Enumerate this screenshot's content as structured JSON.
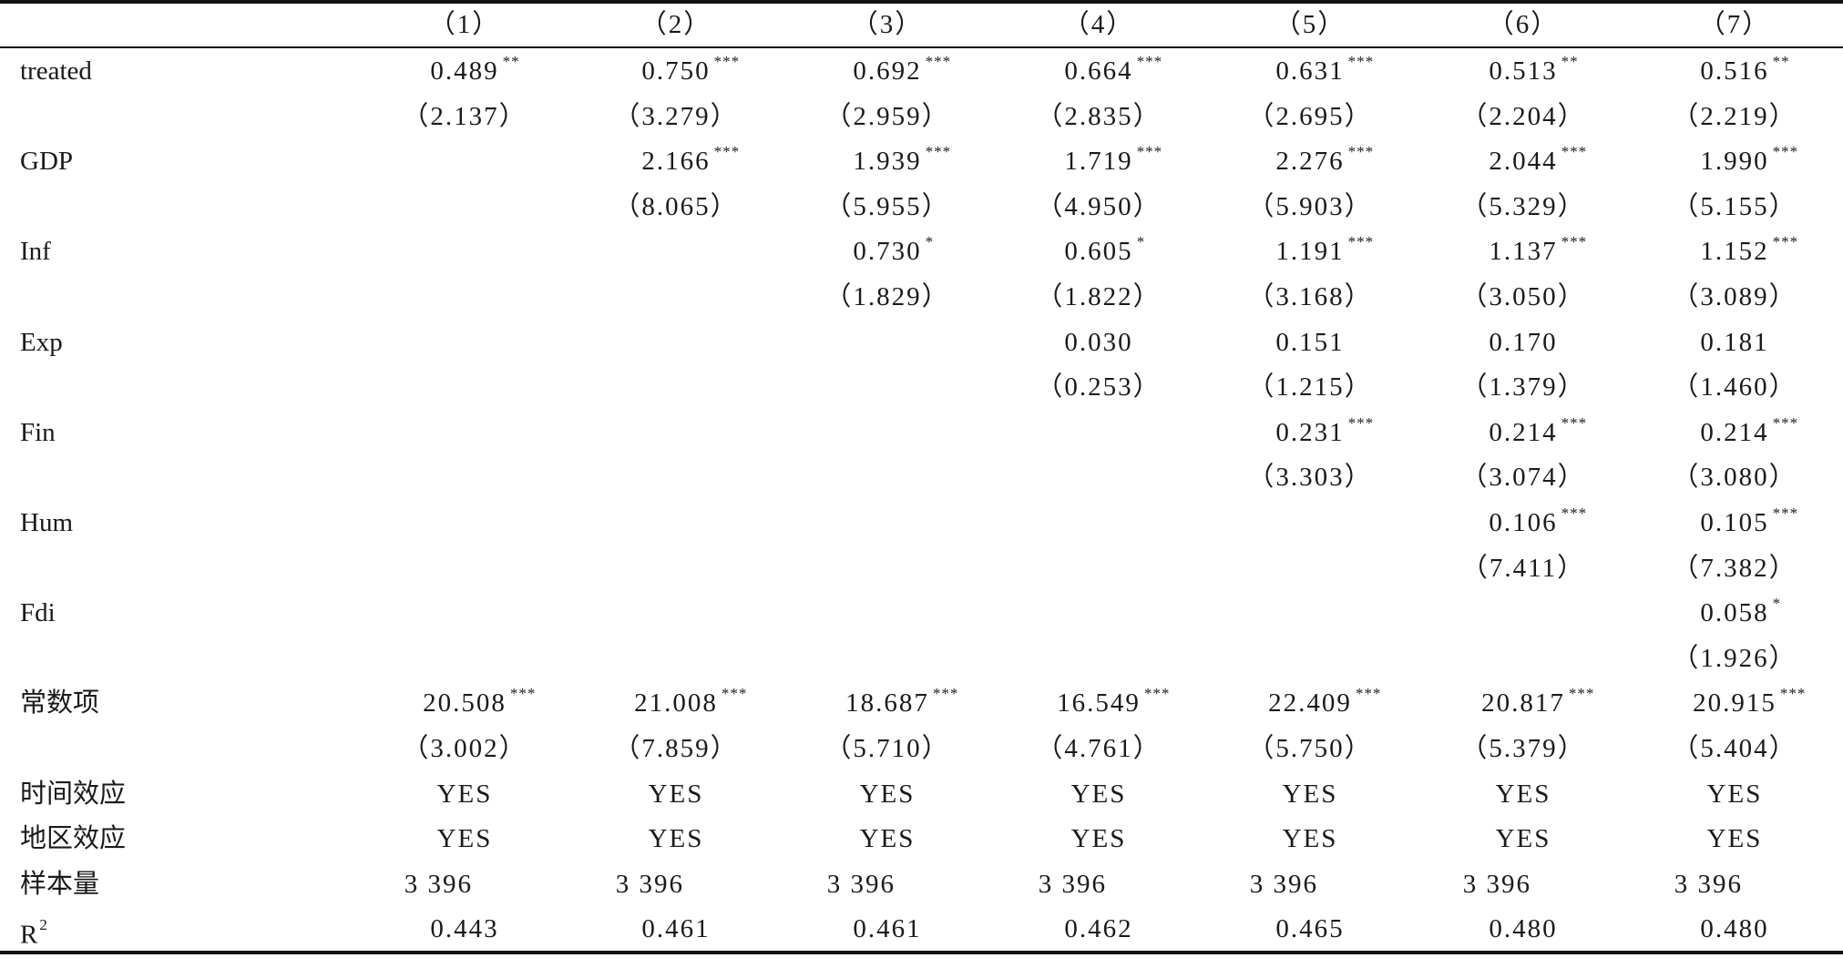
{
  "header": {
    "columns": [
      "（1）",
      "（2）",
      "（3）",
      "（4）",
      "（5）",
      "（6）",
      "（7）"
    ]
  },
  "rows": [
    {
      "label": "treated",
      "values": [
        {
          "v": "0.489",
          "s": "**"
        },
        {
          "v": "0.750",
          "s": "***"
        },
        {
          "v": "0.692",
          "s": "***"
        },
        {
          "v": "0.664",
          "s": "***"
        },
        {
          "v": "0.631",
          "s": "***"
        },
        {
          "v": "0.513",
          "s": "**"
        },
        {
          "v": "0.516",
          "s": "**"
        }
      ]
    },
    {
      "label": "",
      "values": [
        {
          "v": "（2.137）",
          "s": ""
        },
        {
          "v": "（3.279）",
          "s": ""
        },
        {
          "v": "（2.959）",
          "s": ""
        },
        {
          "v": "（2.835）",
          "s": ""
        },
        {
          "v": "（2.695）",
          "s": ""
        },
        {
          "v": "（2.204）",
          "s": ""
        },
        {
          "v": "（2.219）",
          "s": ""
        }
      ]
    },
    {
      "label": "GDP",
      "values": [
        {
          "v": "",
          "s": ""
        },
        {
          "v": "2.166",
          "s": "***"
        },
        {
          "v": "1.939",
          "s": "***"
        },
        {
          "v": "1.719",
          "s": "***"
        },
        {
          "v": "2.276",
          "s": "***"
        },
        {
          "v": "2.044",
          "s": "***"
        },
        {
          "v": "1.990",
          "s": "***"
        }
      ]
    },
    {
      "label": "",
      "values": [
        {
          "v": "",
          "s": ""
        },
        {
          "v": "（8.065）",
          "s": ""
        },
        {
          "v": "（5.955）",
          "s": ""
        },
        {
          "v": "（4.950）",
          "s": ""
        },
        {
          "v": "（5.903）",
          "s": ""
        },
        {
          "v": "（5.329）",
          "s": ""
        },
        {
          "v": "（5.155）",
          "s": ""
        }
      ]
    },
    {
      "label": "Inf",
      "values": [
        {
          "v": "",
          "s": ""
        },
        {
          "v": "",
          "s": ""
        },
        {
          "v": "0.730",
          "s": "*"
        },
        {
          "v": "0.605",
          "s": "*"
        },
        {
          "v": "1.191",
          "s": "***"
        },
        {
          "v": "1.137",
          "s": "***"
        },
        {
          "v": "1.152",
          "s": "***"
        }
      ]
    },
    {
      "label": "",
      "values": [
        {
          "v": "",
          "s": ""
        },
        {
          "v": "",
          "s": ""
        },
        {
          "v": "（1.829）",
          "s": ""
        },
        {
          "v": "（1.822）",
          "s": ""
        },
        {
          "v": "（3.168）",
          "s": ""
        },
        {
          "v": "（3.050）",
          "s": ""
        },
        {
          "v": "（3.089）",
          "s": ""
        }
      ]
    },
    {
      "label": "Exp",
      "values": [
        {
          "v": "",
          "s": ""
        },
        {
          "v": "",
          "s": ""
        },
        {
          "v": "",
          "s": ""
        },
        {
          "v": "0.030",
          "s": ""
        },
        {
          "v": "0.151",
          "s": ""
        },
        {
          "v": "0.170",
          "s": ""
        },
        {
          "v": "0.181",
          "s": ""
        }
      ]
    },
    {
      "label": "",
      "values": [
        {
          "v": "",
          "s": ""
        },
        {
          "v": "",
          "s": ""
        },
        {
          "v": "",
          "s": ""
        },
        {
          "v": "（0.253）",
          "s": ""
        },
        {
          "v": "（1.215）",
          "s": ""
        },
        {
          "v": "（1.379）",
          "s": ""
        },
        {
          "v": "（1.460）",
          "s": ""
        }
      ]
    },
    {
      "label": "Fin",
      "values": [
        {
          "v": "",
          "s": ""
        },
        {
          "v": "",
          "s": ""
        },
        {
          "v": "",
          "s": ""
        },
        {
          "v": "",
          "s": ""
        },
        {
          "v": "0.231",
          "s": "***"
        },
        {
          "v": "0.214",
          "s": "***"
        },
        {
          "v": "0.214",
          "s": "***"
        }
      ]
    },
    {
      "label": "",
      "values": [
        {
          "v": "",
          "s": ""
        },
        {
          "v": "",
          "s": ""
        },
        {
          "v": "",
          "s": ""
        },
        {
          "v": "",
          "s": ""
        },
        {
          "v": "（3.303）",
          "s": ""
        },
        {
          "v": "（3.074）",
          "s": ""
        },
        {
          "v": "（3.080）",
          "s": ""
        }
      ]
    },
    {
      "label": "Hum",
      "values": [
        {
          "v": "",
          "s": ""
        },
        {
          "v": "",
          "s": ""
        },
        {
          "v": "",
          "s": ""
        },
        {
          "v": "",
          "s": ""
        },
        {
          "v": "",
          "s": ""
        },
        {
          "v": "0.106",
          "s": "***"
        },
        {
          "v": "0.105",
          "s": "***"
        }
      ]
    },
    {
      "label": "",
      "values": [
        {
          "v": "",
          "s": ""
        },
        {
          "v": "",
          "s": ""
        },
        {
          "v": "",
          "s": ""
        },
        {
          "v": "",
          "s": ""
        },
        {
          "v": "",
          "s": ""
        },
        {
          "v": "（7.411）",
          "s": ""
        },
        {
          "v": "（7.382）",
          "s": ""
        }
      ]
    },
    {
      "label": "Fdi",
      "values": [
        {
          "v": "",
          "s": ""
        },
        {
          "v": "",
          "s": ""
        },
        {
          "v": "",
          "s": ""
        },
        {
          "v": "",
          "s": ""
        },
        {
          "v": "",
          "s": ""
        },
        {
          "v": "",
          "s": ""
        },
        {
          "v": "0.058",
          "s": "*"
        }
      ]
    },
    {
      "label": "",
      "values": [
        {
          "v": "",
          "s": ""
        },
        {
          "v": "",
          "s": ""
        },
        {
          "v": "",
          "s": ""
        },
        {
          "v": "",
          "s": ""
        },
        {
          "v": "",
          "s": ""
        },
        {
          "v": "",
          "s": ""
        },
        {
          "v": "（1.926）",
          "s": ""
        }
      ]
    },
    {
      "label": "常数项",
      "values": [
        {
          "v": "20.508",
          "s": "***"
        },
        {
          "v": "21.008",
          "s": "***"
        },
        {
          "v": "18.687",
          "s": "***"
        },
        {
          "v": "16.549",
          "s": "***"
        },
        {
          "v": "22.409",
          "s": "***"
        },
        {
          "v": "20.817",
          "s": "***"
        },
        {
          "v": "20.915",
          "s": "***"
        }
      ]
    },
    {
      "label": "",
      "values": [
        {
          "v": "（3.002）",
          "s": ""
        },
        {
          "v": "（7.859）",
          "s": ""
        },
        {
          "v": "（5.710）",
          "s": ""
        },
        {
          "v": "（4.761）",
          "s": ""
        },
        {
          "v": "（5.750）",
          "s": ""
        },
        {
          "v": "（5.379）",
          "s": ""
        },
        {
          "v": "（5.404）",
          "s": ""
        }
      ]
    },
    {
      "label": "时间效应",
      "values": [
        {
          "v": "YES",
          "s": ""
        },
        {
          "v": "YES",
          "s": ""
        },
        {
          "v": "YES",
          "s": ""
        },
        {
          "v": "YES",
          "s": ""
        },
        {
          "v": "YES",
          "s": ""
        },
        {
          "v": "YES",
          "s": ""
        },
        {
          "v": "YES",
          "s": ""
        }
      ]
    },
    {
      "label": "地区效应",
      "values": [
        {
          "v": "YES",
          "s": ""
        },
        {
          "v": "YES",
          "s": ""
        },
        {
          "v": "YES",
          "s": ""
        },
        {
          "v": "YES",
          "s": ""
        },
        {
          "v": "YES",
          "s": ""
        },
        {
          "v": "YES",
          "s": ""
        },
        {
          "v": "YES",
          "s": ""
        }
      ]
    },
    {
      "label": "样本量",
      "values": [
        {
          "v": "3 396",
          "s": ""
        },
        {
          "v": "3 396",
          "s": ""
        },
        {
          "v": "3 396",
          "s": ""
        },
        {
          "v": "3 396",
          "s": ""
        },
        {
          "v": "3 396",
          "s": ""
        },
        {
          "v": "3 396",
          "s": ""
        },
        {
          "v": "3 396",
          "s": ""
        }
      ]
    },
    {
      "label": "R",
      "label_sup": "2",
      "values": [
        {
          "v": "0.443",
          "s": ""
        },
        {
          "v": "0.461",
          "s": ""
        },
        {
          "v": "0.461",
          "s": ""
        },
        {
          "v": "0.462",
          "s": ""
        },
        {
          "v": "0.465",
          "s": ""
        },
        {
          "v": "0.480",
          "s": ""
        },
        {
          "v": "0.480",
          "s": ""
        }
      ]
    }
  ]
}
